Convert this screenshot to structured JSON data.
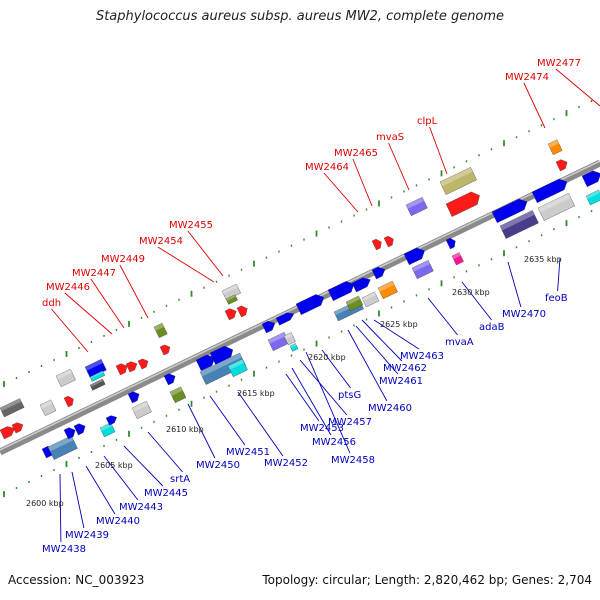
{
  "title": "Staphylococcus aureus subsp. aureus MW2, complete genome",
  "footer": {
    "accession": "Accession: NC_003923",
    "summary": "Topology: circular; Length: 2,820,462 bp; Genes: 2,704"
  },
  "colors": {
    "plus_label": "#dd0000",
    "minus_label": "#0000bb",
    "backbone": "#8a8a8a",
    "tick": "#2e8b2e"
  },
  "kbp_ticks": [
    "2600 kbp",
    "2605 kbp",
    "2610 kbp",
    "2615 kbp",
    "2620 kbp",
    "2625 kbp",
    "2630 kbp",
    "2635 kbp"
  ],
  "plus_strand_labels": [
    "ddh",
    "MW2446",
    "MW2447",
    "MW2449",
    "MW2454",
    "MW2455",
    "MW2464",
    "MW2465",
    "mvaS",
    "clpL",
    "MW2474",
    "MW2477"
  ],
  "minus_strand_labels": [
    "MW2438",
    "MW2439",
    "MW2440",
    "MW2443",
    "MW2445",
    "srtA",
    "MW2450",
    "MW2451",
    "MW2452",
    "MW2453",
    "MW2456",
    "MW2457",
    "MW2458",
    "ptsG",
    "MW2460",
    "MW2461",
    "MW2462",
    "MW2463",
    "mvaA",
    "adaB",
    "MW2470",
    "feoB"
  ]
}
